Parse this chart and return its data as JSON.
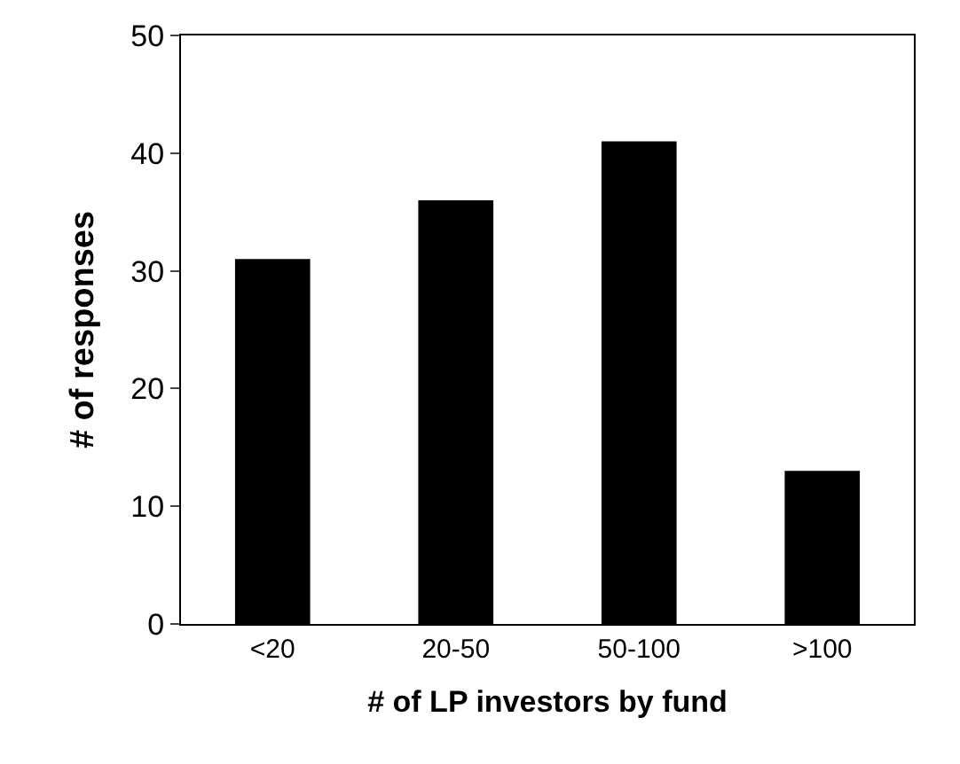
{
  "chart_data": {
    "type": "bar",
    "xlabel": "# of LP investors by fund",
    "ylabel": "# of responses",
    "categories": [
      "<20",
      "20-50",
      "50-100",
      ">100"
    ],
    "values": [
      31,
      36,
      41,
      13
    ],
    "color": "#000000",
    "ylim": [
      0,
      50
    ],
    "yticks": [
      0,
      10,
      20,
      30,
      40,
      50
    ]
  }
}
